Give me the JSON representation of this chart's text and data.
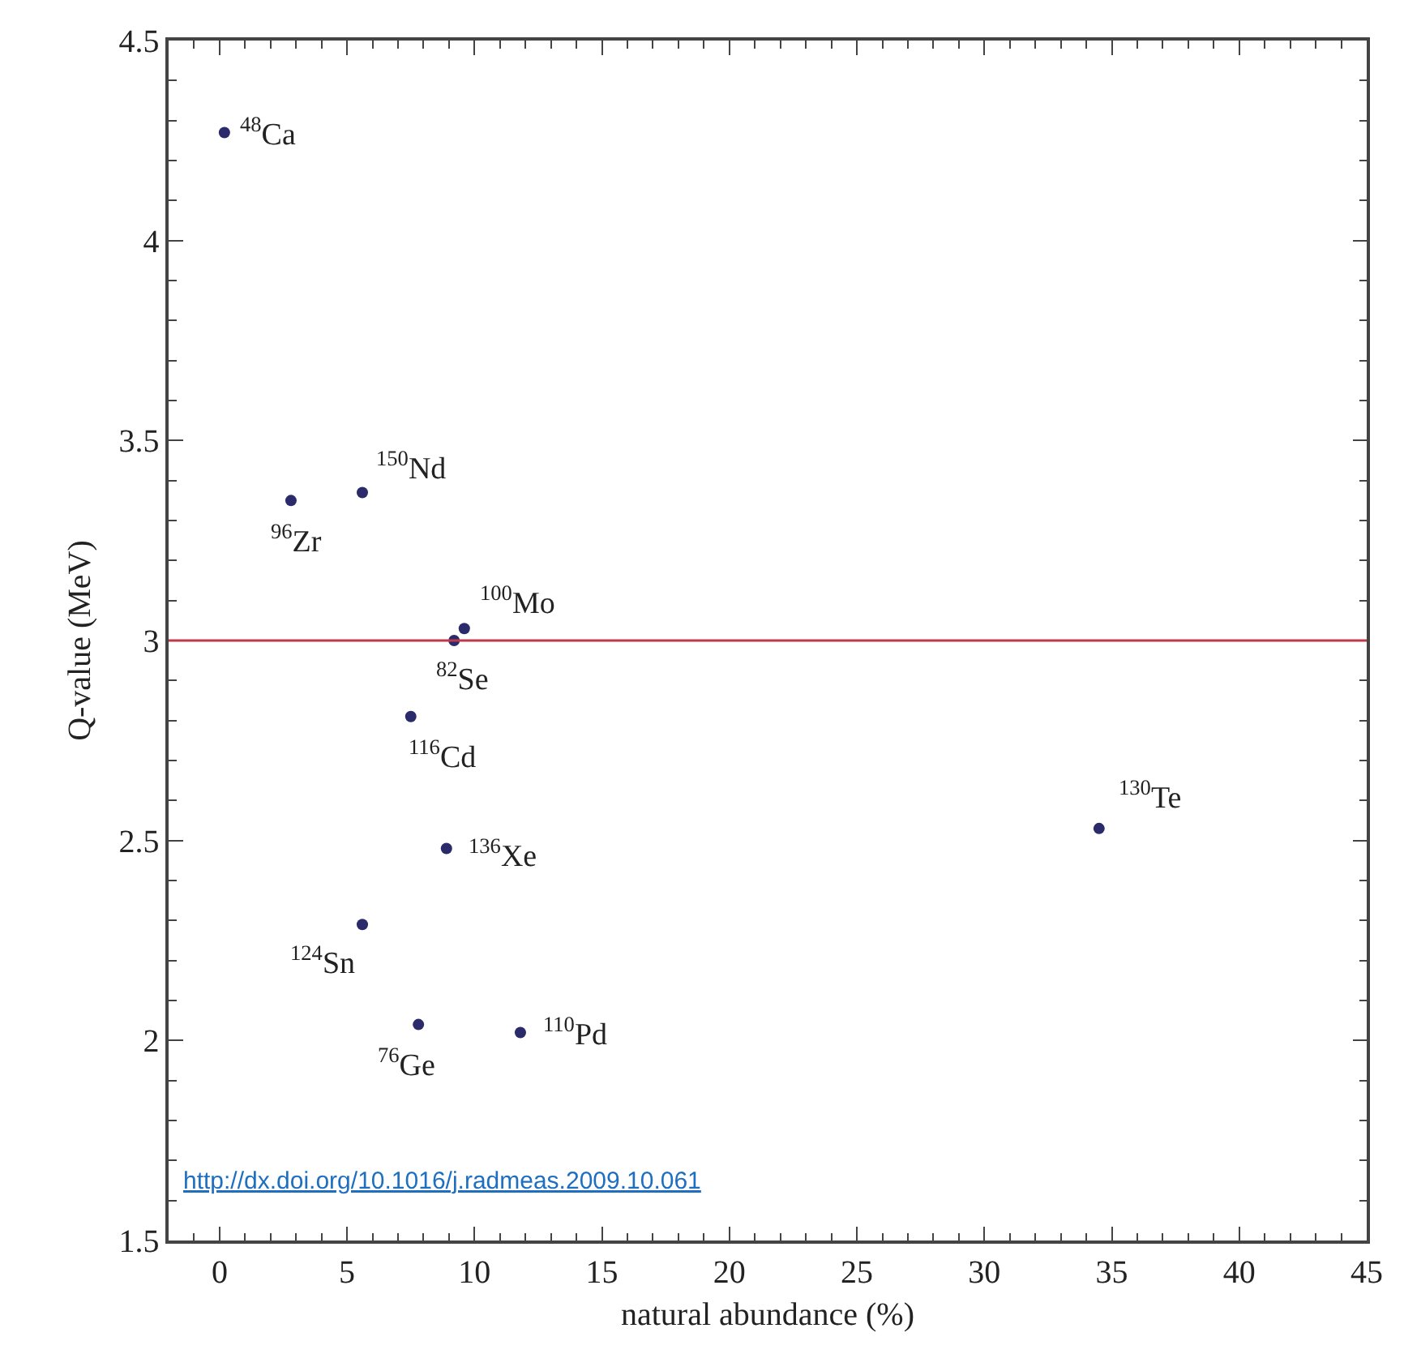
{
  "chart_data": {
    "type": "scatter",
    "xlabel": "natural abundance (%)",
    "ylabel": "Q-value (MeV)",
    "x": [
      0.19,
      2.8,
      5.6,
      9.6,
      9.2,
      7.5,
      8.9,
      5.6,
      7.8,
      11.8,
      34.5
    ],
    "series": [
      {
        "color": "#2b2a6b",
        "values": [
          4.27,
          3.35,
          3.37,
          3.03,
          3.0,
          2.81,
          2.48,
          2.29,
          2.04,
          2.02,
          2.53
        ]
      }
    ],
    "annotations": [
      {
        "text": "$^{48}$Ca",
        "x": 0.19,
        "y": 4.27
      },
      {
        "text": "$^{96}$Zr",
        "x": 2.8,
        "y": 3.35
      },
      {
        "text": "$^{150}$Nd",
        "x": 5.6,
        "y": 3.37
      },
      {
        "text": "$^{100}$Mo",
        "x": 9.6,
        "y": 3.03
      },
      {
        "text": "$^{82}$Se",
        "x": 9.2,
        "y": 3.0
      },
      {
        "text": "$^{116}$Cd",
        "x": 7.5,
        "y": 2.81
      },
      {
        "text": "$^{136}$Xe",
        "x": 8.9,
        "y": 2.48
      },
      {
        "text": "$^{124}$Sn",
        "x": 5.6,
        "y": 2.29
      },
      {
        "text": "$^{76}$Ge",
        "x": 7.8,
        "y": 2.04
      },
      {
        "text": "$^{110}$Pd",
        "x": 11.8,
        "y": 2.02
      },
      {
        "text": "$^{130}$Te",
        "x": 34.5,
        "y": 2.53
      },
      "http://dx.doi.org/10.1016/j.radmeas.2009.10.061"
    ],
    "ref_lines": [
      {
        "axis": "y",
        "value": 3,
        "color": "#c0394b"
      }
    ],
    "xlim": [
      -2,
      45
    ],
    "xticks": [
      0,
      5,
      10,
      15,
      20,
      25,
      30,
      35,
      40,
      45
    ],
    "ylim": [
      1.5,
      4.5
    ],
    "yticks": [
      1.5,
      2,
      2.5,
      3,
      3.5,
      4,
      4.5
    ],
    "marker": "circle"
  }
}
